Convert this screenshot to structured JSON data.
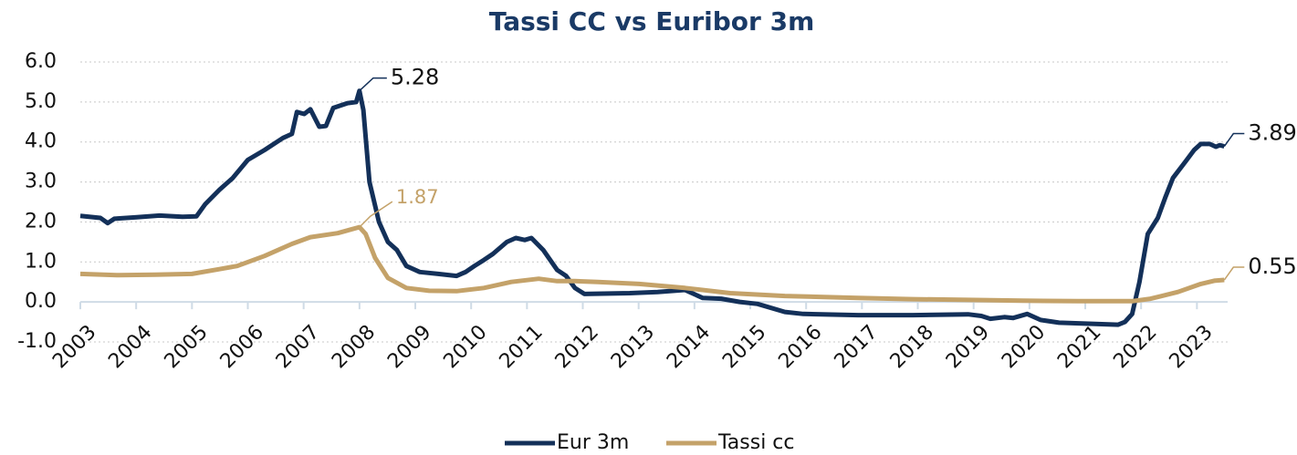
{
  "chart_data": {
    "type": "line",
    "title": "Tassi CC vs Euribor 3m",
    "xlim": [
      2003,
      2023.55
    ],
    "xticks": [
      2003,
      2004,
      2005,
      2006,
      2007,
      2008,
      2009,
      2010,
      2011,
      2012,
      2013,
      2014,
      2015,
      2016,
      2017,
      2018,
      2019,
      2020,
      2021,
      2022,
      2023
    ],
    "ylim": [
      -1,
      6
    ],
    "yticks": [
      {
        "value": -1,
        "label": "-1.0"
      },
      {
        "value": 0,
        "label": "0.0"
      },
      {
        "value": 1,
        "label": "1.0"
      },
      {
        "value": 2,
        "label": "2.0"
      },
      {
        "value": 3,
        "label": "3.0"
      },
      {
        "value": 4,
        "label": "4.0"
      },
      {
        "value": 5,
        "label": "5.0"
      },
      {
        "value": 6,
        "label": "6.0"
      }
    ],
    "grid": true,
    "legend": "bottom",
    "series": [
      {
        "name": "Eur 3m",
        "color": "#133059",
        "x": [
          2003.0,
          2003.36,
          2003.49,
          2003.61,
          2004.01,
          2004.42,
          2004.83,
          2005.08,
          2005.24,
          2005.49,
          2005.73,
          2006.0,
          2006.3,
          2006.63,
          2006.79,
          2006.88,
          2007.01,
          2007.12,
          2007.28,
          2007.4,
          2007.53,
          2007.78,
          2007.94,
          2008.0,
          2008.07,
          2008.18,
          2008.35,
          2008.51,
          2008.67,
          2008.84,
          2009.08,
          2009.41,
          2009.74,
          2009.9,
          2010.06,
          2010.23,
          2010.39,
          2010.64,
          2010.8,
          2010.96,
          2011.08,
          2011.29,
          2011.54,
          2011.7,
          2011.86,
          2012.03,
          2012.84,
          2013.34,
          2013.83,
          2014.15,
          2014.48,
          2014.81,
          2015.13,
          2015.62,
          2015.95,
          2016.93,
          2017.91,
          2018.9,
          2019.14,
          2019.3,
          2019.55,
          2019.71,
          2019.96,
          2020.2,
          2020.53,
          2021.18,
          2021.59,
          2021.71,
          2021.84,
          2021.97,
          2022.12,
          2022.3,
          2022.43,
          2022.57,
          2022.79,
          2022.95,
          2023.07,
          2023.23,
          2023.34,
          2023.41,
          2023.49
        ],
        "values": [
          2.15,
          2.1,
          1.97,
          2.08,
          2.12,
          2.16,
          2.13,
          2.14,
          2.45,
          2.8,
          3.1,
          3.55,
          3.8,
          4.1,
          4.2,
          4.75,
          4.7,
          4.82,
          4.38,
          4.4,
          4.85,
          4.97,
          5.0,
          5.28,
          4.8,
          3.0,
          2.0,
          1.5,
          1.3,
          0.9,
          0.75,
          0.7,
          0.65,
          0.75,
          0.9,
          1.05,
          1.2,
          1.5,
          1.6,
          1.55,
          1.6,
          1.3,
          0.8,
          0.65,
          0.35,
          0.2,
          0.22,
          0.25,
          0.3,
          0.1,
          0.08,
          0.0,
          -0.05,
          -0.25,
          -0.3,
          -0.33,
          -0.33,
          -0.31,
          -0.35,
          -0.42,
          -0.38,
          -0.4,
          -0.3,
          -0.45,
          -0.52,
          -0.55,
          -0.57,
          -0.5,
          -0.3,
          0.5,
          1.7,
          2.1,
          2.6,
          3.1,
          3.5,
          3.8,
          3.95,
          3.95,
          3.88,
          3.92,
          3.89
        ]
      },
      {
        "name": "Tassi cc",
        "color": "#c4a269",
        "x": [
          2003.0,
          2003.69,
          2004.34,
          2005.0,
          2005.49,
          2005.81,
          2006.3,
          2006.79,
          2007.12,
          2007.61,
          2008.0,
          2008.11,
          2008.28,
          2008.51,
          2008.84,
          2009.25,
          2009.74,
          2010.23,
          2010.72,
          2011.21,
          2011.54,
          2011.86,
          2012.27,
          2013.01,
          2013.83,
          2014.64,
          2015.62,
          2016.93,
          2017.91,
          2018.9,
          2019.88,
          2020.86,
          2021.84,
          2022.17,
          2022.66,
          2023.07,
          2023.31,
          2023.49
        ],
        "values": [
          0.7,
          0.67,
          0.68,
          0.7,
          0.82,
          0.9,
          1.15,
          1.45,
          1.62,
          1.72,
          1.87,
          1.7,
          1.1,
          0.6,
          0.35,
          0.28,
          0.27,
          0.35,
          0.5,
          0.58,
          0.52,
          0.52,
          0.5,
          0.45,
          0.35,
          0.22,
          0.15,
          0.1,
          0.07,
          0.05,
          0.03,
          0.02,
          0.02,
          0.08,
          0.25,
          0.45,
          0.53,
          0.55
        ]
      }
    ],
    "annotations": [
      {
        "text": "5.28",
        "x": 2008.0,
        "y": 5.28,
        "series": 0
      },
      {
        "text": "1.87",
        "x": 2008.0,
        "y": 1.87,
        "series": 1
      },
      {
        "text": "3.89",
        "x": 2023.49,
        "y": 3.89,
        "series": 0
      },
      {
        "text": "0.55",
        "x": 2023.49,
        "y": 0.55,
        "series": 1
      }
    ]
  }
}
